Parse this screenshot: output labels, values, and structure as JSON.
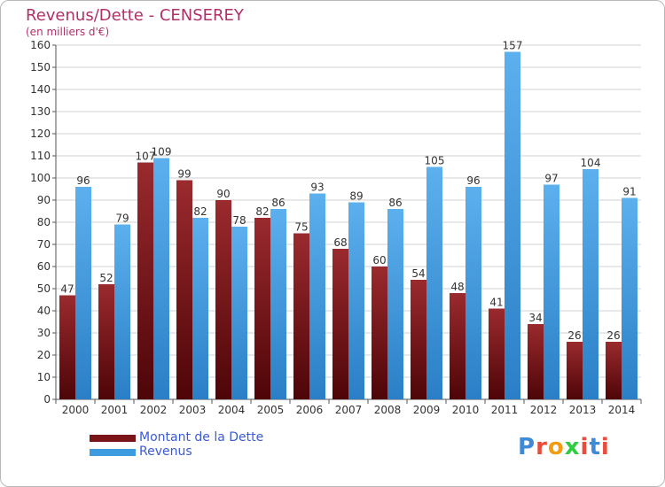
{
  "header": {
    "title": "Revenus/Dette - CENSEREY",
    "subtitle": "(en milliers d'€)"
  },
  "logo": {
    "text": "Proxiti"
  },
  "colors": {
    "dette": "#7a1418",
    "revenus": "#3d9be0",
    "axis": "#555555",
    "grid": "#d0d0d0",
    "title": "#b0306a",
    "legend_text": "#3a5ad8"
  },
  "chart_data": {
    "type": "bar",
    "categories": [
      "2000",
      "2001",
      "2002",
      "2003",
      "2004",
      "2005",
      "2006",
      "2007",
      "2008",
      "2009",
      "2010",
      "2011",
      "2012",
      "2013",
      "2014"
    ],
    "series": [
      {
        "name": "Montant de la Dette",
        "values": [
          47,
          52,
          107,
          99,
          90,
          82,
          75,
          68,
          60,
          54,
          48,
          41,
          34,
          26,
          26
        ]
      },
      {
        "name": "Revenus",
        "values": [
          96,
          79,
          109,
          82,
          78,
          86,
          93,
          89,
          86,
          105,
          96,
          157,
          97,
          104,
          91
        ]
      }
    ],
    "ylim": [
      0,
      160
    ],
    "yticks": [
      0,
      10,
      20,
      30,
      40,
      50,
      60,
      70,
      80,
      90,
      100,
      110,
      120,
      130,
      140,
      150,
      160
    ],
    "grid": true,
    "legend_position": "bottom-left"
  }
}
